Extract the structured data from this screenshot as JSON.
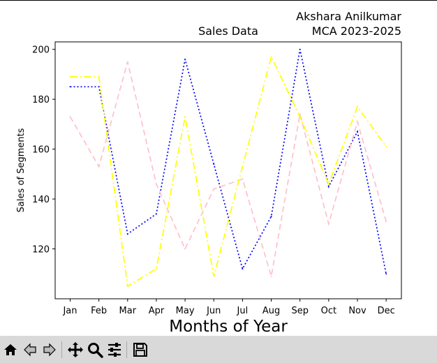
{
  "chart_data": {
    "type": "line",
    "title": "Sales Data",
    "author_line1": "Akshara Anilkumar",
    "author_line2": "MCA 2023-2025",
    "xlabel": "Months of Year",
    "ylabel": "Sales of Segments",
    "categories": [
      "Jan",
      "Feb",
      "Mar",
      "Apr",
      "May",
      "Jun",
      "Jul",
      "Aug",
      "Sep",
      "Oct",
      "Nov",
      "Dec"
    ],
    "ylim": [
      100,
      203
    ],
    "yticks": [
      120,
      140,
      160,
      180,
      200
    ],
    "grid": false,
    "series": [
      {
        "color": "#0000ff",
        "dash": "2,3",
        "values": [
          185,
          185,
          126,
          134,
          196,
          154,
          112,
          133,
          200,
          145,
          167,
          110
        ]
      },
      {
        "color": "#ffc0cb",
        "dash": "8,5",
        "values": [
          173,
          153,
          195,
          146,
          120,
          144,
          148,
          109,
          174,
          130,
          171,
          131
        ]
      },
      {
        "color": "#ffff00",
        "dash": "10,4,2,4",
        "values": [
          189,
          189,
          105,
          112,
          173,
          109,
          153,
          197,
          173,
          146,
          177,
          161
        ]
      }
    ]
  },
  "toolbar": {
    "buttons": [
      "home-icon",
      "back-icon",
      "forward-icon",
      "pan-icon",
      "zoom-icon",
      "configure-subplots-icon",
      "save-icon"
    ]
  }
}
